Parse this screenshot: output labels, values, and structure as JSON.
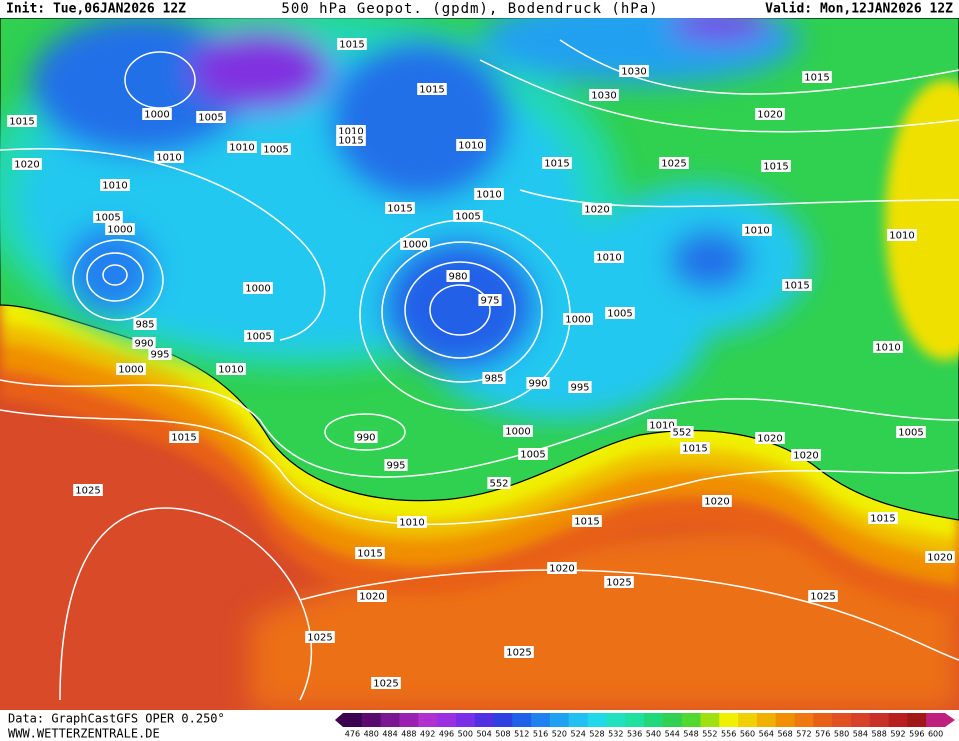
{
  "header": {
    "init": "Init: Tue,06JAN2026 12Z",
    "title": "500 hPa Geopot. (gpdm), Bodendruck (hPa)",
    "valid": "Valid: Mon,12JAN2026 12Z"
  },
  "footer": {
    "data_source": "Data: GraphCastGFS OPER 0.250°",
    "website": "WWW.WETTERZENTRALE.DE"
  },
  "scale": {
    "values": [
      476,
      480,
      484,
      488,
      492,
      496,
      500,
      504,
      508,
      512,
      516,
      520,
      524,
      528,
      532,
      536,
      540,
      544,
      548,
      552,
      556,
      560,
      564,
      568,
      572,
      576,
      580,
      584,
      588,
      592,
      596,
      600
    ],
    "colors": [
      "#3c0050",
      "#5a0a6e",
      "#7a1690",
      "#9a20b0",
      "#b030d0",
      "#9a30e0",
      "#7a30e8",
      "#5030e0",
      "#3040e0",
      "#2060e8",
      "#2080f0",
      "#20a0f0",
      "#20c0f0",
      "#20d8e8",
      "#20e0c0",
      "#20e0a0",
      "#20d878",
      "#30d050",
      "#50d830",
      "#a0e010",
      "#f0f000",
      "#f0d000",
      "#f0b000",
      "#f09000",
      "#f07810",
      "#e86018",
      "#e05020",
      "#d84028",
      "#c83028",
      "#b82020",
      "#a01818",
      "#c02080"
    ]
  },
  "map": {
    "isobar_labels": [
      "1015",
      "1015",
      "1030",
      "1030",
      "1015",
      "1015",
      "1000",
      "1005",
      "1020",
      "1010",
      "1010",
      "1005",
      "1010",
      "1015",
      "1010",
      "1020",
      "1015",
      "1025",
      "1015",
      "1010",
      "1010",
      "1015",
      "1020",
      "1005",
      "1000",
      "1005",
      "1010",
      "1000",
      "1010",
      "1010",
      "1015",
      "1000",
      "980",
      "975",
      "1000",
      "1005",
      "985",
      "990",
      "995",
      "1005",
      "1010",
      "1000",
      "1010",
      "985",
      "990",
      "995",
      "1015",
      "990",
      "1000",
      "1010",
      "1020",
      "1015",
      "1020",
      "1005",
      "995",
      "1005",
      "552",
      "552",
      "1025",
      "1020",
      "1015",
      "1010",
      "1015",
      "1015",
      "1020",
      "1025",
      "1020",
      "1020",
      "1025",
      "1025",
      "1025",
      "1025"
    ]
  }
}
